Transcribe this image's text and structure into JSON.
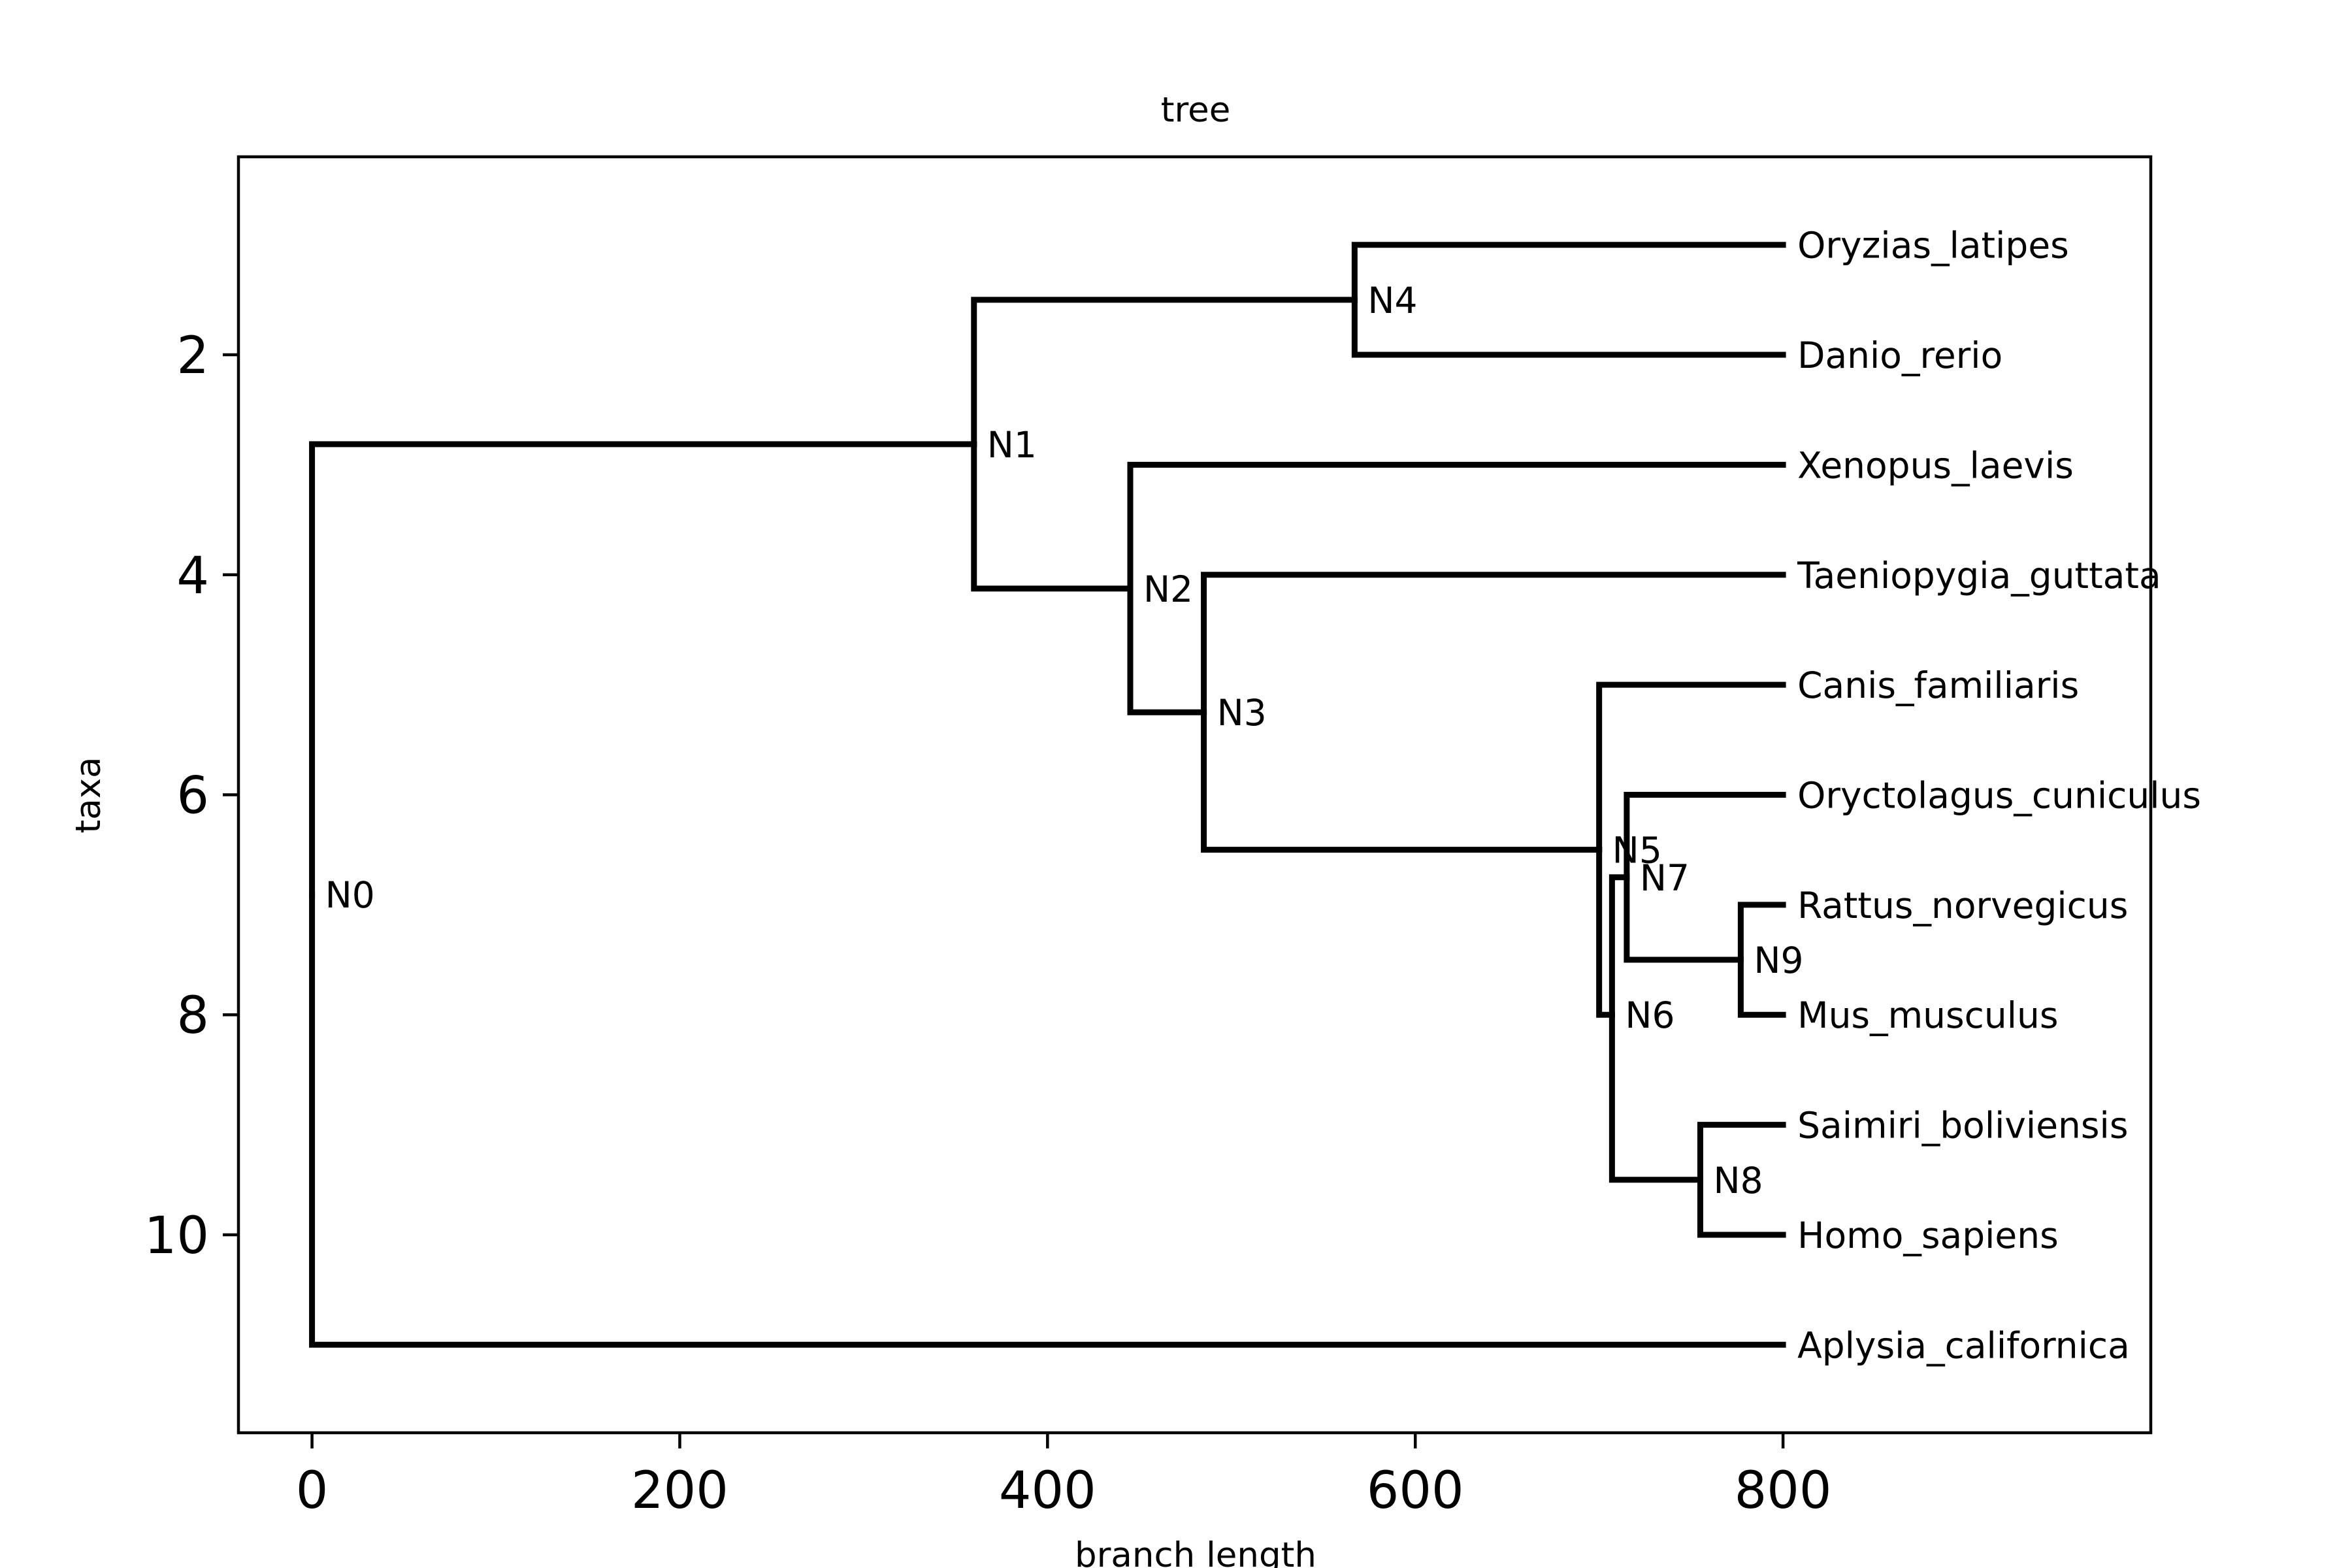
{
  "chart_data": {
    "type": "dendrogram",
    "title": "tree",
    "xlabel": "branch length",
    "ylabel": "taxa",
    "xlim": [
      -40,
      1000
    ],
    "ylim": [
      11.8,
      0.2
    ],
    "xticks": [
      0,
      200,
      400,
      600,
      800
    ],
    "yticks": [
      2,
      4,
      6,
      8,
      10
    ],
    "grid": false,
    "leaves": [
      {
        "name": "Oryzias_latipes",
        "x": 800,
        "y": 1
      },
      {
        "name": "Danio_rerio",
        "x": 800,
        "y": 2
      },
      {
        "name": "Xenopus_laevis",
        "x": 800,
        "y": 3
      },
      {
        "name": "Taeniopygia_guttata",
        "x": 800,
        "y": 4
      },
      {
        "name": "Canis_familiaris",
        "x": 800,
        "y": 5
      },
      {
        "name": "Oryctolagus_cuniculus",
        "x": 800,
        "y": 6
      },
      {
        "name": "Rattus_norvegicus",
        "x": 800,
        "y": 7
      },
      {
        "name": "Mus_musculus",
        "x": 800,
        "y": 8
      },
      {
        "name": "Saimiri_boliviensis",
        "x": 800,
        "y": 9
      },
      {
        "name": "Homo_sapiens",
        "x": 800,
        "y": 10
      },
      {
        "name": "Aplysia_californica",
        "x": 800,
        "y": 11
      }
    ],
    "nodes": [
      {
        "name": "N0",
        "x": 0,
        "y": 6.90625
      },
      {
        "name": "N1",
        "x": 360,
        "y": 2.8125
      },
      {
        "name": "N2",
        "x": 445,
        "y": 4.125
      },
      {
        "name": "N3",
        "x": 485,
        "y": 5.25
      },
      {
        "name": "N4",
        "x": 567,
        "y": 1.5
      },
      {
        "name": "N5",
        "x": 700,
        "y": 6.5
      },
      {
        "name": "N6",
        "x": 707,
        "y": 8.0
      },
      {
        "name": "N7",
        "x": 715,
        "y": 6.75
      },
      {
        "name": "N8",
        "x": 755,
        "y": 9.5
      },
      {
        "name": "N9",
        "x": 777,
        "y": 7.5
      }
    ],
    "edges": [
      [
        "N0",
        "N1"
      ],
      [
        "N0",
        "Aplysia_californica"
      ],
      [
        "N1",
        "N4"
      ],
      [
        "N1",
        "N2"
      ],
      [
        "N4",
        "Oryzias_latipes"
      ],
      [
        "N4",
        "Danio_rerio"
      ],
      [
        "N2",
        "Xenopus_laevis"
      ],
      [
        "N2",
        "N3"
      ],
      [
        "N3",
        "Taeniopygia_guttata"
      ],
      [
        "N3",
        "N5"
      ],
      [
        "N5",
        "Canis_familiaris"
      ],
      [
        "N5",
        "N6"
      ],
      [
        "N6",
        "N7"
      ],
      [
        "N6",
        "N8"
      ],
      [
        "N7",
        "Oryctolagus_cuniculus"
      ],
      [
        "N7",
        "N9"
      ],
      [
        "N9",
        "Rattus_norvegicus"
      ],
      [
        "N9",
        "Mus_musculus"
      ],
      [
        "N8",
        "Saimiri_boliviensis"
      ],
      [
        "N8",
        "Homo_sapiens"
      ]
    ]
  }
}
